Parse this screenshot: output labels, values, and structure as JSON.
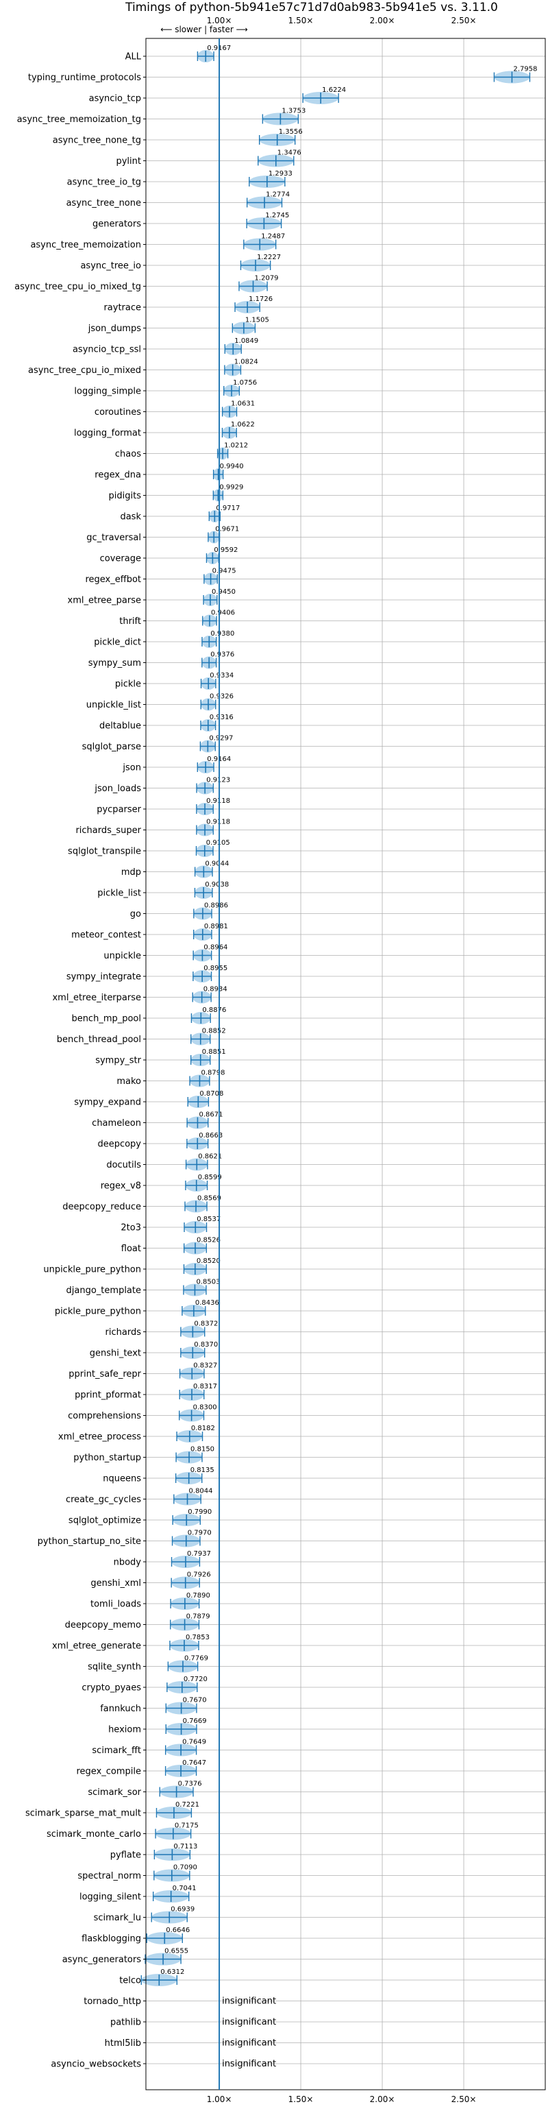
{
  "colors": {
    "accent": "#1f77b4",
    "violin": "#9ec9e8",
    "grid": "#b0b0b0"
  },
  "chart_data": {
    "type": "violin",
    "title": "Timings of python-5b941e57c71d7d0ab983-5b941e5 vs. 3.11.0",
    "direction_label": "⟵ slower | faster ⟶",
    "xlim": [
      0.55,
      3.0
    ],
    "x_ticks": [
      1.0,
      1.5,
      2.0,
      2.5
    ],
    "x_tick_labels": [
      "1.00×",
      "1.50×",
      "2.00×",
      "2.50×"
    ],
    "reference": 1.0,
    "grid": true,
    "insignificant_label": "insignificant",
    "benchmarks": [
      {
        "name": "ALL",
        "value": 0.9167,
        "label": "0.9167"
      },
      {
        "name": "typing_runtime_protocols",
        "value": 2.7958,
        "label": "2.7958"
      },
      {
        "name": "asyncio_tcp",
        "value": 1.6224,
        "label": "1.6224"
      },
      {
        "name": "async_tree_memoization_tg",
        "value": 1.3753,
        "label": "1.3753"
      },
      {
        "name": "async_tree_none_tg",
        "value": 1.3556,
        "label": "1.3556"
      },
      {
        "name": "pylint",
        "value": 1.3476,
        "label": "1.3476"
      },
      {
        "name": "async_tree_io_tg",
        "value": 1.2933,
        "label": "1.2933"
      },
      {
        "name": "async_tree_none",
        "value": 1.2774,
        "label": "1.2774"
      },
      {
        "name": "generators",
        "value": 1.2745,
        "label": "1.2745"
      },
      {
        "name": "async_tree_memoization",
        "value": 1.2487,
        "label": "1.2487"
      },
      {
        "name": "async_tree_io",
        "value": 1.2227,
        "label": "1.2227"
      },
      {
        "name": "async_tree_cpu_io_mixed_tg",
        "value": 1.2079,
        "label": "1.2079"
      },
      {
        "name": "raytrace",
        "value": 1.1726,
        "label": "1.1726"
      },
      {
        "name": "json_dumps",
        "value": 1.1505,
        "label": "1.1505"
      },
      {
        "name": "asyncio_tcp_ssl",
        "value": 1.0849,
        "label": "1.0849"
      },
      {
        "name": "async_tree_cpu_io_mixed",
        "value": 1.0824,
        "label": "1.0824"
      },
      {
        "name": "logging_simple",
        "value": 1.0756,
        "label": "1.0756"
      },
      {
        "name": "coroutines",
        "value": 1.0631,
        "label": "1.0631"
      },
      {
        "name": "logging_format",
        "value": 1.0622,
        "label": "1.0622"
      },
      {
        "name": "chaos",
        "value": 1.0212,
        "label": "1.0212"
      },
      {
        "name": "regex_dna",
        "value": 0.994,
        "label": "0.9940"
      },
      {
        "name": "pidigits",
        "value": 0.9929,
        "label": "0.9929"
      },
      {
        "name": "dask",
        "value": 0.9717,
        "label": "0.9717"
      },
      {
        "name": "gc_traversal",
        "value": 0.9671,
        "label": "0.9671"
      },
      {
        "name": "coverage",
        "value": 0.9592,
        "label": "0.9592"
      },
      {
        "name": "regex_effbot",
        "value": 0.9475,
        "label": "0.9475"
      },
      {
        "name": "xml_etree_parse",
        "value": 0.945,
        "label": "0.9450"
      },
      {
        "name": "thrift",
        "value": 0.9406,
        "label": "0.9406"
      },
      {
        "name": "pickle_dict",
        "value": 0.938,
        "label": "0.9380"
      },
      {
        "name": "sympy_sum",
        "value": 0.9376,
        "label": "0.9376"
      },
      {
        "name": "pickle",
        "value": 0.9334,
        "label": "0.9334"
      },
      {
        "name": "unpickle_list",
        "value": 0.9326,
        "label": "0.9326"
      },
      {
        "name": "deltablue",
        "value": 0.9316,
        "label": "0.9316"
      },
      {
        "name": "sqlglot_parse",
        "value": 0.9297,
        "label": "0.9297"
      },
      {
        "name": "json",
        "value": 0.9164,
        "label": "0.9164"
      },
      {
        "name": "json_loads",
        "value": 0.9123,
        "label": "0.9123"
      },
      {
        "name": "pycparser",
        "value": 0.9118,
        "label": "0.9118"
      },
      {
        "name": "richards_super",
        "value": 0.9118,
        "label": "0.9118"
      },
      {
        "name": "sqlglot_transpile",
        "value": 0.9105,
        "label": "0.9105"
      },
      {
        "name": "mdp",
        "value": 0.9044,
        "label": "0.9044"
      },
      {
        "name": "pickle_list",
        "value": 0.9038,
        "label": "0.9038"
      },
      {
        "name": "go",
        "value": 0.8986,
        "label": "0.8986"
      },
      {
        "name": "meteor_contest",
        "value": 0.8981,
        "label": "0.8981"
      },
      {
        "name": "unpickle",
        "value": 0.8964,
        "label": "0.8964"
      },
      {
        "name": "sympy_integrate",
        "value": 0.8955,
        "label": "0.8955"
      },
      {
        "name": "xml_etree_iterparse",
        "value": 0.8934,
        "label": "0.8934"
      },
      {
        "name": "bench_mp_pool",
        "value": 0.8876,
        "label": "0.8876"
      },
      {
        "name": "bench_thread_pool",
        "value": 0.8852,
        "label": "0.8852"
      },
      {
        "name": "sympy_str",
        "value": 0.8851,
        "label": "0.8851"
      },
      {
        "name": "mako",
        "value": 0.8798,
        "label": "0.8798"
      },
      {
        "name": "sympy_expand",
        "value": 0.8708,
        "label": "0.8708"
      },
      {
        "name": "chameleon",
        "value": 0.8671,
        "label": "0.8671"
      },
      {
        "name": "deepcopy",
        "value": 0.8663,
        "label": "0.8663"
      },
      {
        "name": "docutils",
        "value": 0.8621,
        "label": "0.8621"
      },
      {
        "name": "regex_v8",
        "value": 0.8599,
        "label": "0.8599"
      },
      {
        "name": "deepcopy_reduce",
        "value": 0.8569,
        "label": "0.8569"
      },
      {
        "name": "2to3",
        "value": 0.8537,
        "label": "0.8537"
      },
      {
        "name": "float",
        "value": 0.8526,
        "label": "0.8526"
      },
      {
        "name": "unpickle_pure_python",
        "value": 0.852,
        "label": "0.8520"
      },
      {
        "name": "django_template",
        "value": 0.8503,
        "label": "0.8503"
      },
      {
        "name": "pickle_pure_python",
        "value": 0.8436,
        "label": "0.8436"
      },
      {
        "name": "richards",
        "value": 0.8372,
        "label": "0.8372"
      },
      {
        "name": "genshi_text",
        "value": 0.837,
        "label": "0.8370"
      },
      {
        "name": "pprint_safe_repr",
        "value": 0.8327,
        "label": "0.8327"
      },
      {
        "name": "pprint_pformat",
        "value": 0.8317,
        "label": "0.8317"
      },
      {
        "name": "comprehensions",
        "value": 0.83,
        "label": "0.8300"
      },
      {
        "name": "xml_etree_process",
        "value": 0.8182,
        "label": "0.8182"
      },
      {
        "name": "python_startup",
        "value": 0.815,
        "label": "0.8150"
      },
      {
        "name": "nqueens",
        "value": 0.8135,
        "label": "0.8135"
      },
      {
        "name": "create_gc_cycles",
        "value": 0.8044,
        "label": "0.8044"
      },
      {
        "name": "sqlglot_optimize",
        "value": 0.799,
        "label": "0.7990"
      },
      {
        "name": "python_startup_no_site",
        "value": 0.797,
        "label": "0.7970"
      },
      {
        "name": "nbody",
        "value": 0.7937,
        "label": "0.7937"
      },
      {
        "name": "genshi_xml",
        "value": 0.7926,
        "label": "0.7926"
      },
      {
        "name": "tomli_loads",
        "value": 0.789,
        "label": "0.7890"
      },
      {
        "name": "deepcopy_memo",
        "value": 0.7879,
        "label": "0.7879"
      },
      {
        "name": "xml_etree_generate",
        "value": 0.7853,
        "label": "0.7853"
      },
      {
        "name": "sqlite_synth",
        "value": 0.7769,
        "label": "0.7769"
      },
      {
        "name": "crypto_pyaes",
        "value": 0.772,
        "label": "0.7720"
      },
      {
        "name": "fannkuch",
        "value": 0.767,
        "label": "0.7670"
      },
      {
        "name": "hexiom",
        "value": 0.7669,
        "label": "0.7669"
      },
      {
        "name": "scimark_fft",
        "value": 0.7649,
        "label": "0.7649"
      },
      {
        "name": "regex_compile",
        "value": 0.7647,
        "label": "0.7647"
      },
      {
        "name": "scimark_sor",
        "value": 0.7376,
        "label": "0.7376"
      },
      {
        "name": "scimark_sparse_mat_mult",
        "value": 0.7221,
        "label": "0.7221"
      },
      {
        "name": "scimark_monte_carlo",
        "value": 0.7175,
        "label": "0.7175"
      },
      {
        "name": "pyflate",
        "value": 0.7113,
        "label": "0.7113"
      },
      {
        "name": "spectral_norm",
        "value": 0.709,
        "label": "0.7090"
      },
      {
        "name": "logging_silent",
        "value": 0.7041,
        "label": "0.7041"
      },
      {
        "name": "scimark_lu",
        "value": 0.6939,
        "label": "0.6939"
      },
      {
        "name": "flaskblogging",
        "value": 0.6646,
        "label": "0.6646"
      },
      {
        "name": "async_generators",
        "value": 0.6555,
        "label": "0.6555"
      },
      {
        "name": "telco",
        "value": 0.6312,
        "label": "0.6312"
      },
      {
        "name": "tornado_http",
        "value": null,
        "label": ""
      },
      {
        "name": "pathlib",
        "value": null,
        "label": ""
      },
      {
        "name": "html5lib",
        "value": null,
        "label": ""
      },
      {
        "name": "asyncio_websockets",
        "value": null,
        "label": ""
      }
    ]
  }
}
